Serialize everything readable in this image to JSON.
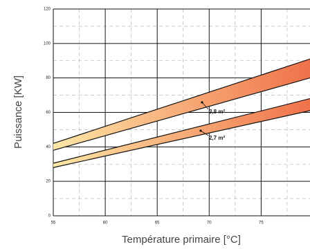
{
  "chart_data": {
    "type": "band",
    "x_label": "Température primaire [°C]",
    "y_label": "Puissance [KW]",
    "x": [
      55,
      79.7
    ],
    "series": [
      {
        "name": "3,8 m²",
        "lower": [
          38,
          80
        ],
        "upper": [
          42,
          91
        ],
        "color_start": "#fde6a6",
        "color_end": "#f0724a"
      },
      {
        "name": "2,7 m²",
        "lower": [
          28,
          61
        ],
        "upper": [
          30.5,
          68
        ],
        "color_start": "#fde6a6",
        "color_end": "#f0724a"
      }
    ],
    "xlim": [
      55,
      79.7
    ],
    "ylim": [
      0,
      120
    ],
    "xticks": [
      55,
      60,
      65,
      70,
      75
    ],
    "yticks": [
      0,
      20,
      40,
      60,
      80,
      100,
      120
    ],
    "minor_xticks": [
      57.5,
      62.5,
      67.5,
      72.5,
      77.5
    ],
    "minor_yticks": [
      10,
      30,
      50,
      70,
      90,
      110
    ],
    "grid": true
  }
}
